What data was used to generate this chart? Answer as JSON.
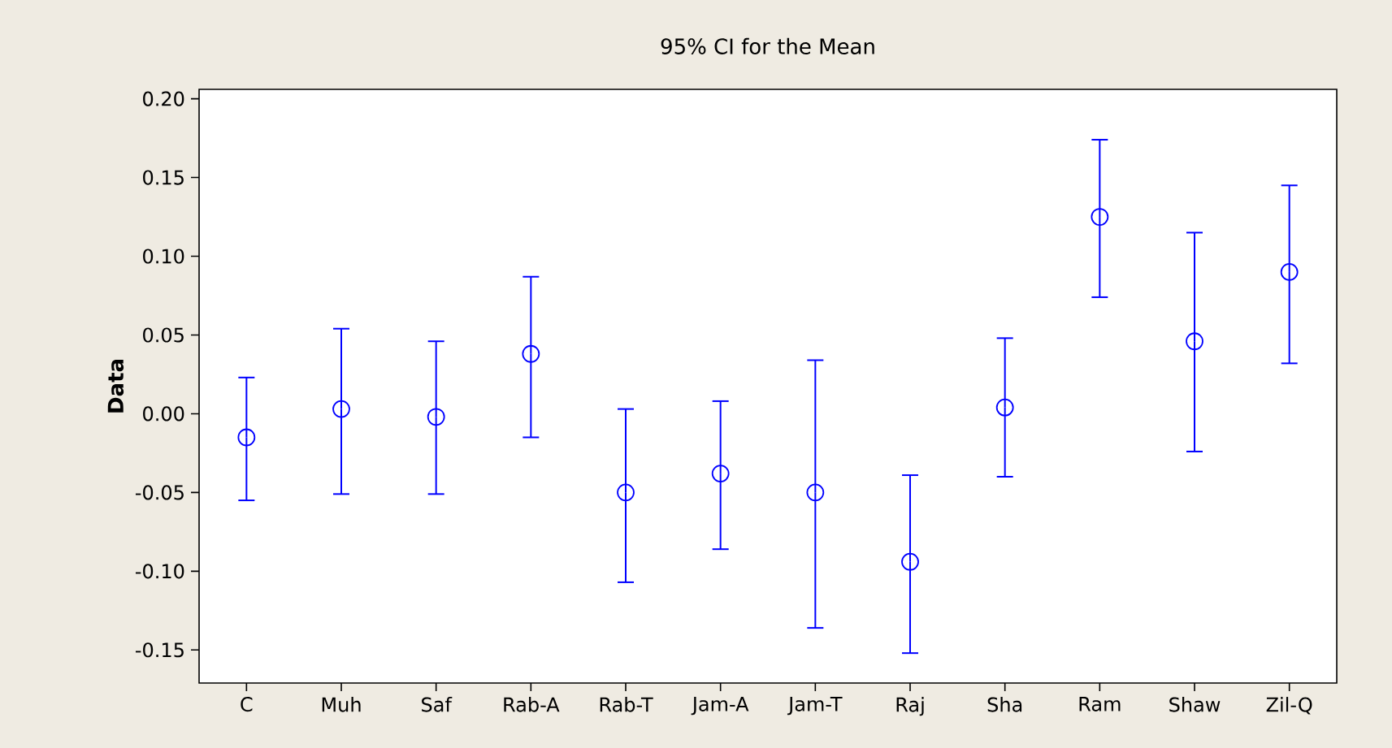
{
  "chart_data": {
    "type": "scatter",
    "title": "95% CI for the Mean",
    "ylabel": "Data",
    "categories": [
      "C",
      "Muh",
      "Saf",
      "Rab-A",
      "Rab-T",
      "Jam-A",
      "Jam-T",
      "Raj",
      "Sha",
      "Ram",
      "Shaw",
      "Zil-Q"
    ],
    "values": [
      -0.015,
      0.003,
      -0.002,
      0.038,
      -0.05,
      -0.038,
      -0.05,
      -0.094,
      0.004,
      0.125,
      0.046,
      0.09
    ],
    "errors": [
      [
        -0.055,
        0.023
      ],
      [
        -0.051,
        0.054
      ],
      [
        -0.051,
        0.046
      ],
      [
        -0.015,
        0.087
      ],
      [
        -0.107,
        0.003
      ],
      [
        -0.086,
        0.008
      ],
      [
        -0.136,
        0.034
      ],
      [
        -0.152,
        -0.039
      ],
      [
        -0.04,
        0.048
      ],
      [
        0.074,
        0.174
      ],
      [
        -0.024,
        0.115
      ],
      [
        0.032,
        0.145
      ]
    ],
    "color": "#0000ff",
    "marker": "circle",
    "ylim": [
      -0.171,
      0.206
    ],
    "yticks": [
      {
        "value": -0.15,
        "label": "-0.15"
      },
      {
        "value": -0.1,
        "label": "-0.10"
      },
      {
        "value": -0.05,
        "label": "-0.05"
      },
      {
        "value": 0,
        "label": "0.00"
      },
      {
        "value": 0.05,
        "label": "0.05"
      },
      {
        "value": 0.1,
        "label": "0.10"
      },
      {
        "value": 0.15,
        "label": "0.15"
      },
      {
        "value": 0.2,
        "label": "0.20"
      }
    ]
  }
}
